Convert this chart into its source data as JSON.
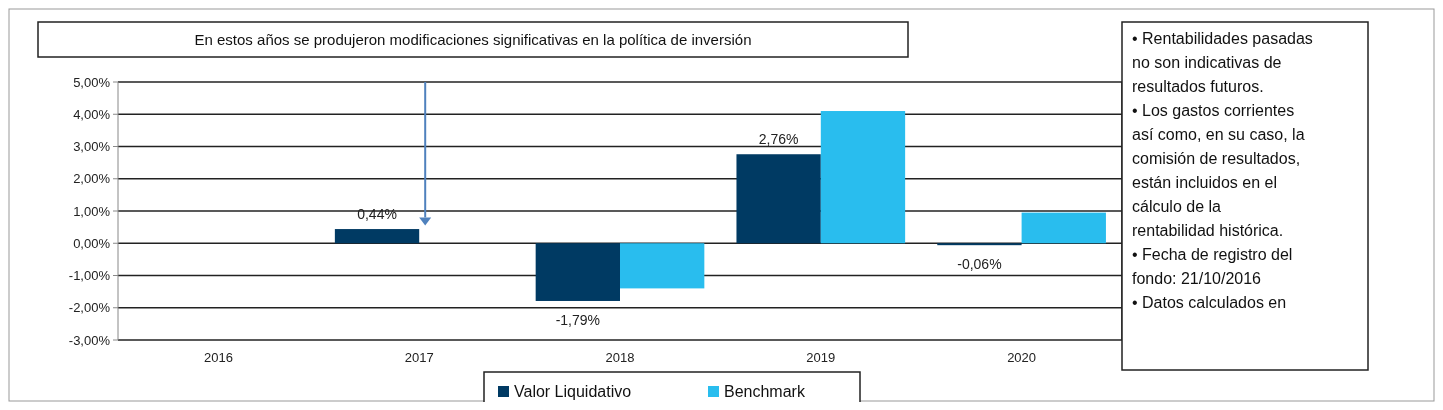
{
  "chart_data": {
    "type": "bar",
    "title": "En  estos años se produjeron modificaciones significativas en la política  de inversión",
    "categories": [
      "2016",
      "2017",
      "2018",
      "2019",
      "2020"
    ],
    "series": [
      {
        "name": "Valor Liquidativo",
        "color": "#003a63",
        "values": [
          null,
          0.44,
          -1.79,
          2.76,
          -0.06
        ],
        "value_labels": [
          null,
          "0,44%",
          "-1,79%",
          "2,76%",
          "-0,06%"
        ]
      },
      {
        "name": "Benchmark",
        "color": "#29bdee",
        "values": [
          null,
          null,
          -1.4,
          4.1,
          0.95
        ]
      }
    ],
    "ylim": [
      -3,
      5
    ],
    "yticks": [
      {
        "value": -3,
        "label": "-3,00%"
      },
      {
        "value": -2,
        "label": "-2,00%"
      },
      {
        "value": -1,
        "label": "-1,00%"
      },
      {
        "value": 0,
        "label": "0,00%"
      },
      {
        "value": 1,
        "label": "1,00%"
      },
      {
        "value": 2,
        "label": "2,00%"
      },
      {
        "value": 3,
        "label": "3,00%"
      },
      {
        "value": 4,
        "label": "4,00%"
      },
      {
        "value": 5,
        "label": "5,00%"
      }
    ],
    "grid": "y",
    "legend": "bottom",
    "annotations": [
      "• Rentabilidades pasadas no son indicativas de resultados futuros.",
      "• Los gastos corrientes así como, en su caso, la comisión de resultados, están incluidos en el cálculo de la rentabilidad histórica.",
      "• Fecha de registro del fondo: 21/10/2016",
      "• Datos calculados en"
    ]
  }
}
